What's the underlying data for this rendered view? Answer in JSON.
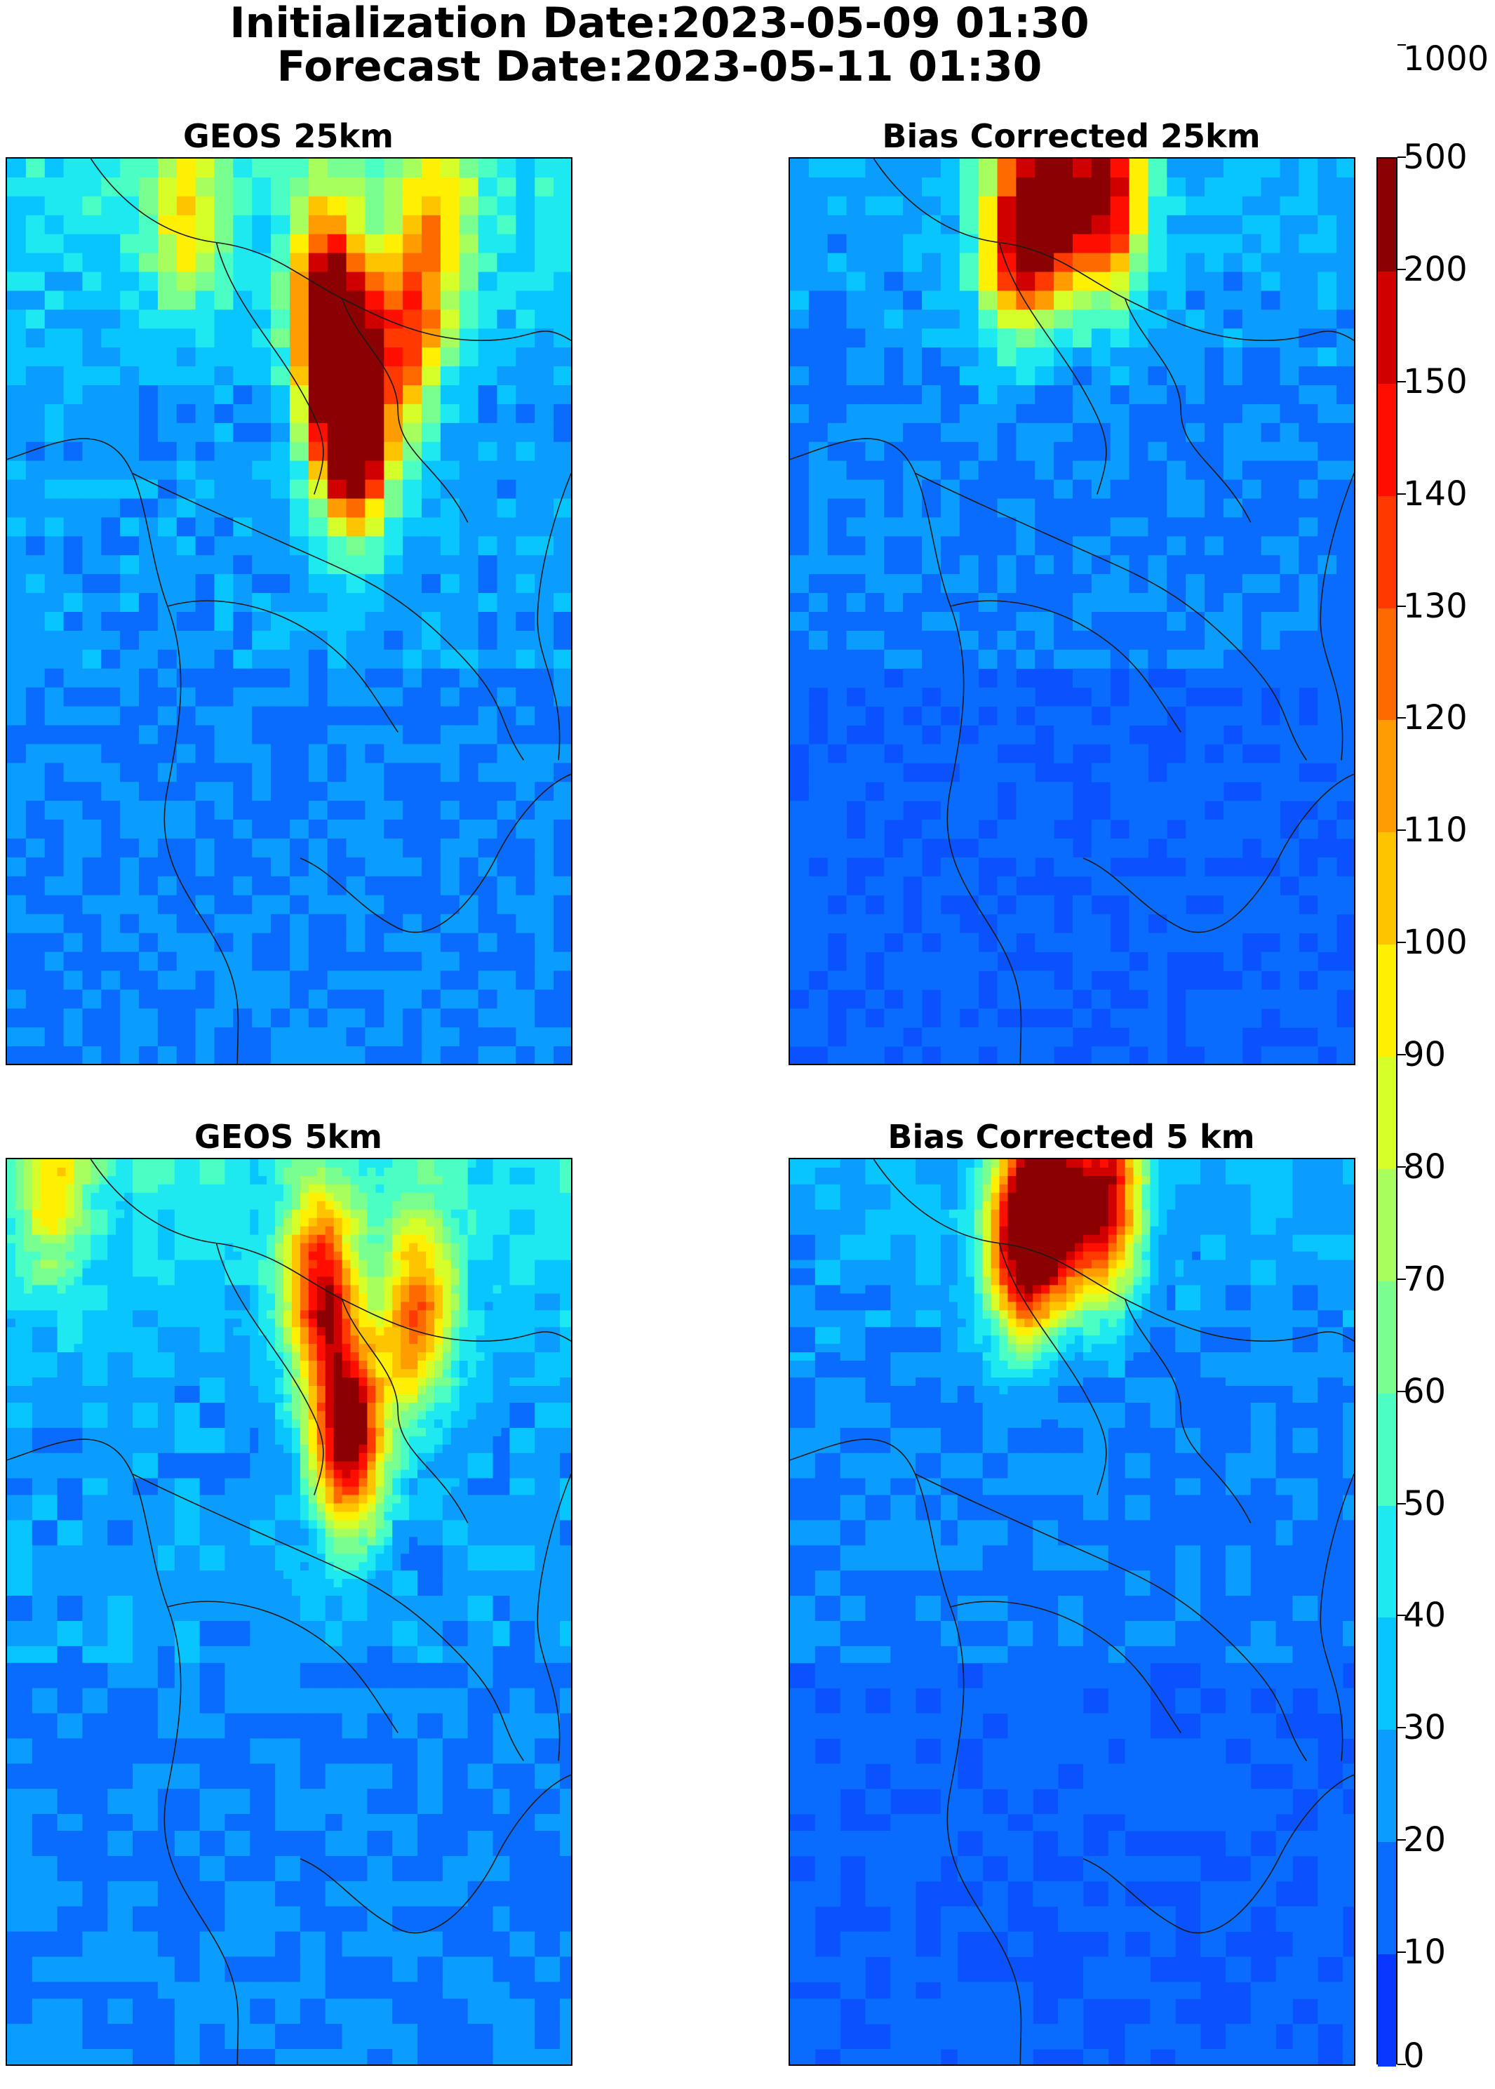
{
  "header": {
    "line1": "Initialization Date:2023-05-09 01:30",
    "line2": "Forecast Date:2023-05-11 01:30"
  },
  "panels": [
    {
      "id": "geos-25",
      "title": "GEOS 25km"
    },
    {
      "id": "bc-25",
      "title": "Bias Corrected 25km"
    },
    {
      "id": "geos-5",
      "title": "GEOS 5km"
    },
    {
      "id": "bc-5",
      "title": "Bias Corrected 5 km"
    }
  ],
  "colorbar": {
    "levels": [
      "0",
      "10",
      "20",
      "30",
      "40",
      "50",
      "60",
      "70",
      "80",
      "90",
      "100",
      "110",
      "120",
      "130",
      "140",
      "150",
      "200",
      "500",
      "1000"
    ],
    "colors": [
      "#0a37ff",
      "#0a6bff",
      "#0a9dff",
      "#09c5ff",
      "#1ee8f0",
      "#4affc4",
      "#78ff90",
      "#a6ff5c",
      "#d6ff2a",
      "#ffef00",
      "#ffc400",
      "#ff9d00",
      "#ff6a00",
      "#ff3a00",
      "#ff0f00",
      "#d10000",
      "#8b0000"
    ]
  },
  "hotspots": {
    "geos-25": [
      {
        "lon": 0.55,
        "lat": 0.14,
        "v": 6
      },
      {
        "lon": 0.58,
        "lat": 0.23,
        "v": 7
      },
      {
        "lon": 0.7,
        "lat": 0.18,
        "v": 5
      },
      {
        "lon": 0.6,
        "lat": 0.3,
        "v": 8
      },
      {
        "lon": 0.3,
        "lat": 0.05,
        "v": 3
      },
      {
        "lon": 0.75,
        "lat": 0.05,
        "v": 3
      }
    ],
    "bc-25": [
      {
        "lon": 0.45,
        "lat": 0.04,
        "v": 7
      },
      {
        "lon": 0.38,
        "lat": 0.08,
        "v": 6
      },
      {
        "lon": 0.55,
        "lat": 0.03,
        "v": 7
      }
    ],
    "geos-5": [
      {
        "lon": 0.55,
        "lat": 0.14,
        "v": 6
      },
      {
        "lon": 0.72,
        "lat": 0.17,
        "v": 5
      },
      {
        "lon": 0.6,
        "lat": 0.3,
        "v": 8
      },
      {
        "lon": 0.07,
        "lat": 0.02,
        "v": 3
      }
    ],
    "bc-5": [
      {
        "lon": 0.45,
        "lat": 0.05,
        "v": 7
      },
      {
        "lon": 0.4,
        "lat": 0.09,
        "v": 6
      },
      {
        "lon": 0.55,
        "lat": 0.04,
        "v": 7
      }
    ]
  }
}
